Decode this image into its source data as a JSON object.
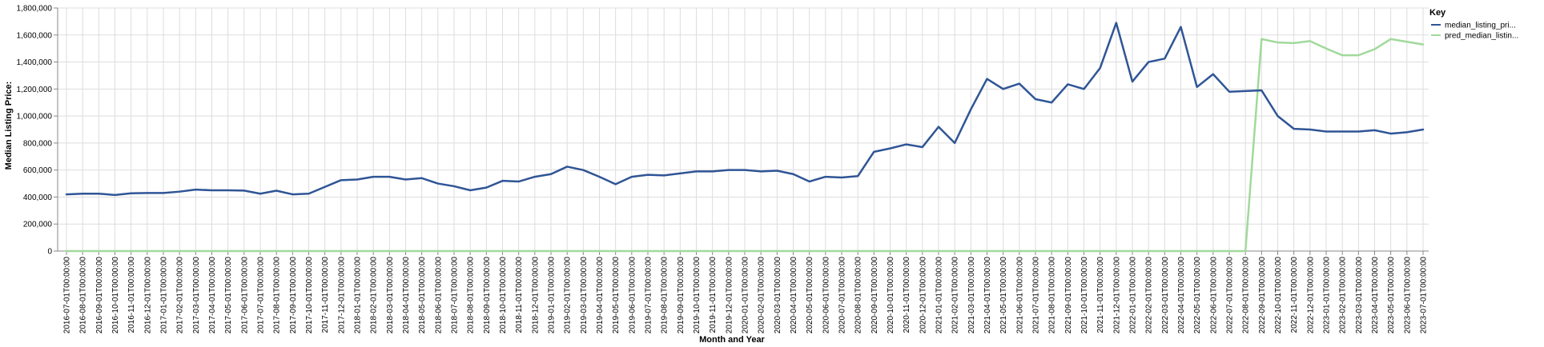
{
  "chart_data": {
    "type": "line",
    "xlabel": "Month and Year",
    "ylabel": "Median Listing Price:",
    "ylim": [
      0,
      1800000
    ],
    "y_ticks": [
      "0",
      "200,000",
      "400,000",
      "600,000",
      "800,000",
      "1,000,000",
      "1,200,000",
      "1,400,000",
      "1,600,000",
      "1,800,000"
    ],
    "grid": true,
    "legend": {
      "title": "Key",
      "position": "right"
    },
    "x": [
      "2016-07-01T00:00:00",
      "2016-08-01T00:00:00",
      "2016-09-01T00:00:00",
      "2016-10-01T00:00:00",
      "2016-11-01T00:00:00",
      "2016-12-01T00:00:00",
      "2017-01-01T00:00:00",
      "2017-02-01T00:00:00",
      "2017-03-01T00:00:00",
      "2017-04-01T00:00:00",
      "2017-05-01T00:00:00",
      "2017-06-01T00:00:00",
      "2017-07-01T00:00:00",
      "2017-08-01T00:00:00",
      "2017-09-01T00:00:00",
      "2017-10-01T00:00:00",
      "2017-11-01T00:00:00",
      "2017-12-01T00:00:00",
      "2018-01-01T00:00:00",
      "2018-02-01T00:00:00",
      "2018-03-01T00:00:00",
      "2018-04-01T00:00:00",
      "2018-05-01T00:00:00",
      "2018-06-01T00:00:00",
      "2018-07-01T00:00:00",
      "2018-08-01T00:00:00",
      "2018-09-01T00:00:00",
      "2018-10-01T00:00:00",
      "2018-11-01T00:00:00",
      "2018-12-01T00:00:00",
      "2019-01-01T00:00:00",
      "2019-02-01T00:00:00",
      "2019-03-01T00:00:00",
      "2019-04-01T00:00:00",
      "2019-05-01T00:00:00",
      "2019-06-01T00:00:00",
      "2019-07-01T00:00:00",
      "2019-08-01T00:00:00",
      "2019-09-01T00:00:00",
      "2019-10-01T00:00:00",
      "2019-11-01T00:00:00",
      "2019-12-01T00:00:00",
      "2020-01-01T00:00:00",
      "2020-02-01T00:00:00",
      "2020-03-01T00:00:00",
      "2020-04-01T00:00:00",
      "2020-05-01T00:00:00",
      "2020-06-01T00:00:00",
      "2020-07-01T00:00:00",
      "2020-08-01T00:00:00",
      "2020-09-01T00:00:00",
      "2020-10-01T00:00:00",
      "2020-11-01T00:00:00",
      "2020-12-01T00:00:00",
      "2021-01-01T00:00:00",
      "2021-02-01T00:00:00",
      "2021-03-01T00:00:00",
      "2021-04-01T00:00:00",
      "2021-05-01T00:00:00",
      "2021-06-01T00:00:00",
      "2021-07-01T00:00:00",
      "2021-08-01T00:00:00",
      "2021-09-01T00:00:00",
      "2021-10-01T00:00:00",
      "2021-11-01T00:00:00",
      "2021-12-01T00:00:00",
      "2022-01-01T00:00:00",
      "2022-02-01T00:00:00",
      "2022-03-01T00:00:00",
      "2022-04-01T00:00:00",
      "2022-05-01T00:00:00",
      "2022-06-01T00:00:00",
      "2022-07-01T00:00:00",
      "2022-08-01T00:00:00",
      "2022-09-01T00:00:00",
      "2022-10-01T00:00:00",
      "2022-11-01T00:00:00",
      "2022-12-01T00:00:00",
      "2023-01-01T00:00:00",
      "2023-02-01T00:00:00",
      "2023-03-01T00:00:00",
      "2023-04-01T00:00:00",
      "2023-05-01T00:00:00",
      "2023-06-01T00:00:00",
      "2023-07-01T00:00:00"
    ],
    "series": [
      {
        "name": "median_listing_pri...",
        "color": "#2f5596",
        "values": [
          420000,
          425000,
          425000,
          415000,
          428000,
          430000,
          430000,
          440000,
          455000,
          450000,
          450000,
          448000,
          425000,
          447000,
          420000,
          425000,
          475000,
          525000,
          530000,
          550000,
          550000,
          530000,
          540000,
          500000,
          480000,
          450000,
          470000,
          520000,
          515000,
          550000,
          570000,
          625000,
          600000,
          550000,
          495000,
          550000,
          565000,
          560000,
          575000,
          590000,
          590000,
          600000,
          600000,
          590000,
          595000,
          570000,
          515000,
          550000,
          545000,
          555000,
          735000,
          760000,
          790000,
          770000,
          920000,
          800000,
          1050000,
          1275000,
          1200000,
          1240000,
          1125000,
          1100000,
          1235000,
          1200000,
          1355000,
          1690000,
          1255000,
          1400000,
          1425000,
          1660000,
          1215000,
          1310000,
          1180000,
          1185000,
          1190000,
          1000000,
          905000,
          900000,
          885000,
          885000,
          885000,
          895000,
          870000,
          880000,
          900000
        ]
      },
      {
        "name": "pred_median_listin...",
        "color": "#a1d99b",
        "values": [
          0,
          0,
          0,
          0,
          0,
          0,
          0,
          0,
          0,
          0,
          0,
          0,
          0,
          0,
          0,
          0,
          0,
          0,
          0,
          0,
          0,
          0,
          0,
          0,
          0,
          0,
          0,
          0,
          0,
          0,
          0,
          0,
          0,
          0,
          0,
          0,
          0,
          0,
          0,
          0,
          0,
          0,
          0,
          0,
          0,
          0,
          0,
          0,
          0,
          0,
          0,
          0,
          0,
          0,
          0,
          0,
          0,
          0,
          0,
          0,
          0,
          0,
          0,
          0,
          0,
          0,
          0,
          0,
          0,
          0,
          0,
          0,
          0,
          0,
          1570000,
          1545000,
          1540000,
          1555000,
          1500000,
          1450000,
          1450000,
          1495000,
          1570000,
          1550000,
          1530000
        ]
      }
    ]
  }
}
